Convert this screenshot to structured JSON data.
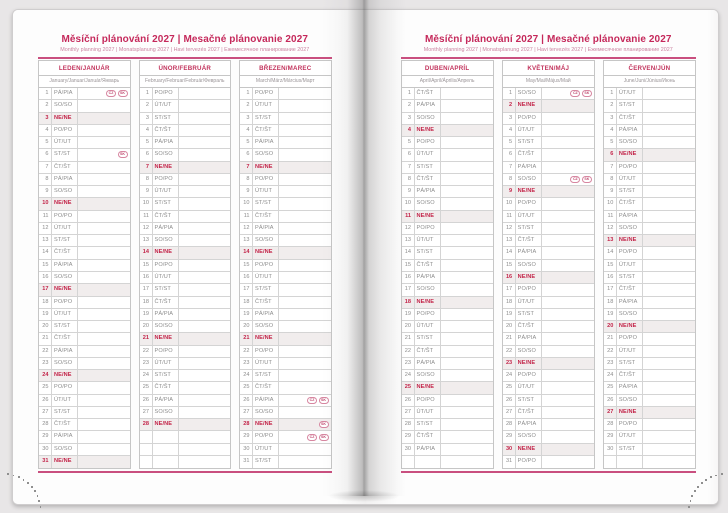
{
  "title": {
    "main": "Měsíční plánování 2027 | Mesačné plánovanie 2027",
    "intl": "Monthly planning 2027 | Monatsplanung 2027 | Havi tervezés 2027 | Ежемесячное планирование 2027"
  },
  "colors": {
    "accent": "#c5295b",
    "accent_light": "#cb84a1",
    "rule_pink": "#c94f7f",
    "sunday_red": "#c32449",
    "sunday_row_bg": "#f1eded",
    "day_text_grey": "#8d8d8d",
    "table_border_grey": "#c6c6c6",
    "page_white": "#fdfdfd",
    "background_grey": "#e8e6e7"
  },
  "badge_labels": {
    "cz": "CZ",
    "sk": "SK"
  },
  "rows_per_month": 31,
  "pages": [
    {
      "side": "left",
      "months": [
        {
          "name": "LEDEN/JANUÁR",
          "intl": "January/Januar/Január/Январь",
          "days": [
            "PÁ/PIA",
            "SO/SO",
            "NE/NE",
            "PO/PO",
            "ÚT/UT",
            "ST/ST",
            "ČT/ŠT",
            "PÁ/PIA",
            "SO/SO",
            "NE/NE",
            "PO/PO",
            "ÚT/UT",
            "ST/ST",
            "ČT/ŠT",
            "PÁ/PIA",
            "SO/SO",
            "NE/NE",
            "PO/PO",
            "ÚT/UT",
            "ST/ST",
            "ČT/ŠT",
            "PÁ/PIA",
            "SO/SO",
            "NE/NE",
            "PO/PO",
            "ÚT/UT",
            "ST/ST",
            "ČT/ŠT",
            "PÁ/PIA",
            "SO/SO",
            "NE/NE"
          ],
          "badges": {
            "1": [
              "CZ",
              "SK"
            ],
            "6": [
              "SK"
            ]
          }
        },
        {
          "name": "ÚNOR/FEBRUÁR",
          "intl": "February/Februar/Február/Февраль",
          "days": [
            "PO/PO",
            "ÚT/UT",
            "ST/ST",
            "ČT/ŠT",
            "PÁ/PIA",
            "SO/SO",
            "NE/NE",
            "PO/PO",
            "ÚT/UT",
            "ST/ST",
            "ČT/ŠT",
            "PÁ/PIA",
            "SO/SO",
            "NE/NE",
            "PO/PO",
            "ÚT/UT",
            "ST/ST",
            "ČT/ŠT",
            "PÁ/PIA",
            "SO/SO",
            "NE/NE",
            "PO/PO",
            "ÚT/UT",
            "ST/ST",
            "ČT/ŠT",
            "PÁ/PIA",
            "SO/SO",
            "NE/NE"
          ],
          "badges": {}
        },
        {
          "name": "BŘEZEN/MAREC",
          "intl": "March/März/Március/Март",
          "days": [
            "PO/PO",
            "ÚT/UT",
            "ST/ST",
            "ČT/ŠT",
            "PÁ/PIA",
            "SO/SO",
            "NE/NE",
            "PO/PO",
            "ÚT/UT",
            "ST/ST",
            "ČT/ŠT",
            "PÁ/PIA",
            "SO/SO",
            "NE/NE",
            "PO/PO",
            "ÚT/UT",
            "ST/ST",
            "ČT/ŠT",
            "PÁ/PIA",
            "SO/SO",
            "NE/NE",
            "PO/PO",
            "ÚT/UT",
            "ST/ST",
            "ČT/ŠT",
            "PÁ/PIA",
            "SO/SO",
            "NE/NE",
            "PO/PO",
            "ÚT/UT",
            "ST/ST"
          ],
          "badges": {
            "26": [
              "CZ",
              "SK"
            ],
            "28": [
              "SK"
            ],
            "29": [
              "CZ",
              "SK"
            ]
          }
        }
      ]
    },
    {
      "side": "right",
      "months": [
        {
          "name": "DUBEN/APRÍL",
          "intl": "April/April/Április/Апрель",
          "days": [
            "ČT/ŠT",
            "PÁ/PIA",
            "SO/SO",
            "NE/NE",
            "PO/PO",
            "ÚT/UT",
            "ST/ST",
            "ČT/ŠT",
            "PÁ/PIA",
            "SO/SO",
            "NE/NE",
            "PO/PO",
            "ÚT/UT",
            "ST/ST",
            "ČT/ŠT",
            "PÁ/PIA",
            "SO/SO",
            "NE/NE",
            "PO/PO",
            "ÚT/UT",
            "ST/ST",
            "ČT/ŠT",
            "PÁ/PIA",
            "SO/SO",
            "NE/NE",
            "PO/PO",
            "ÚT/UT",
            "ST/ST",
            "ČT/ŠT",
            "PÁ/PIA"
          ],
          "badges": {}
        },
        {
          "name": "KVĚTEN/MÁJ",
          "intl": "May/Mai/Május/Май",
          "days": [
            "SO/SO",
            "NE/NE",
            "PO/PO",
            "ÚT/UT",
            "ST/ST",
            "ČT/ŠT",
            "PÁ/PIA",
            "SO/SO",
            "NE/NE",
            "PO/PO",
            "ÚT/UT",
            "ST/ST",
            "ČT/ŠT",
            "PÁ/PIA",
            "SO/SO",
            "NE/NE",
            "PO/PO",
            "ÚT/UT",
            "ST/ST",
            "ČT/ŠT",
            "PÁ/PIA",
            "SO/SO",
            "NE/NE",
            "PO/PO",
            "ÚT/UT",
            "ST/ST",
            "ČT/ŠT",
            "PÁ/PIA",
            "SO/SO",
            "NE/NE",
            "PO/PO"
          ],
          "badges": {
            "1": [
              "CZ",
              "SK"
            ],
            "8": [
              "CZ",
              "SK"
            ]
          }
        },
        {
          "name": "ČERVEN/JÚN",
          "intl": "June/Juni/Június/Июнь",
          "days": [
            "ÚT/UT",
            "ST/ST",
            "ČT/ŠT",
            "PÁ/PIA",
            "SO/SO",
            "NE/NE",
            "PO/PO",
            "ÚT/UT",
            "ST/ST",
            "ČT/ŠT",
            "PÁ/PIA",
            "SO/SO",
            "NE/NE",
            "PO/PO",
            "ÚT/UT",
            "ST/ST",
            "ČT/ŠT",
            "PÁ/PIA",
            "SO/SO",
            "NE/NE",
            "PO/PO",
            "ÚT/UT",
            "ST/ST",
            "ČT/ŠT",
            "PÁ/PIA",
            "SO/SO",
            "NE/NE",
            "PO/PO",
            "ÚT/UT",
            "ST/ST"
          ],
          "badges": {}
        }
      ]
    }
  ]
}
